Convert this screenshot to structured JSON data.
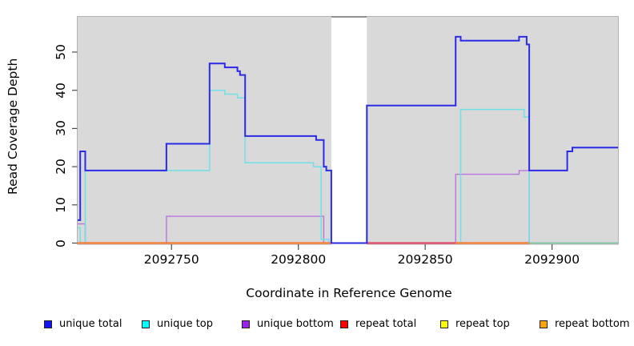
{
  "chart_data": {
    "type": "line",
    "subtype": "step-coverage",
    "title": "",
    "xlabel": "Coordinate in Reference Genome",
    "ylabel": "Read Coverage Depth",
    "xlim": [
      2092713,
      2092926
    ],
    "ylim": [
      0,
      59
    ],
    "x_ticks": [
      2092750,
      2092800,
      2092850,
      2092900
    ],
    "y_ticks": [
      0,
      10,
      20,
      30,
      40,
      50
    ],
    "grid": "off",
    "panel_bg": "#d9d9d9",
    "panel_border": "#b3b3b3",
    "gap_region": {
      "from": 2092813,
      "to": 2092827,
      "fill": "#ffffff",
      "top_mark_color": "#8d8d8d"
    },
    "legend_position": "bottom-row",
    "series": [
      {
        "name": "unique total",
        "swatch_color": "#1414f0",
        "line_color": "#2b2be6",
        "line_width": 2,
        "runs": [
          {
            "steps": [
              [
                2092713,
                6
              ],
              [
                2092714,
                24
              ],
              [
                2092716,
                19
              ],
              [
                2092748,
                26
              ],
              [
                2092765,
                47
              ],
              [
                2092771,
                46
              ],
              [
                2092776,
                45
              ],
              [
                2092777,
                44
              ],
              [
                2092779,
                28
              ],
              [
                2092807,
                27
              ],
              [
                2092810,
                20
              ],
              [
                2092811,
                19
              ],
              [
                2092813,
                0
              ],
              [
                2092827,
                36
              ],
              [
                2092862,
                54
              ],
              [
                2092864,
                53
              ],
              [
                2092887,
                54
              ],
              [
                2092890,
                52
              ],
              [
                2092891,
                19
              ],
              [
                2092906,
                24
              ],
              [
                2092908,
                25
              ]
            ],
            "end": 2092926
          }
        ]
      },
      {
        "name": "unique top",
        "swatch_color": "#00ffff",
        "line_color": "#6fe0e8",
        "line_width": 1.5,
        "runs": [
          {
            "steps": [
              [
                2092713,
                4
              ],
              [
                2092714,
                0
              ],
              [
                2092716,
                19
              ],
              [
                2092765,
                40
              ],
              [
                2092771,
                39
              ],
              [
                2092776,
                38
              ],
              [
                2092779,
                21
              ],
              [
                2092806,
                20
              ],
              [
                2092809,
                1
              ],
              [
                2092812,
                0
              ]
            ],
            "end": 2092813
          },
          {
            "steps": [
              [
                2092864,
                0
              ],
              [
                2092864,
                35
              ],
              [
                2092889,
                33
              ],
              [
                2092891,
                0
              ]
            ],
            "end": 2092891
          }
        ]
      },
      {
        "name": "unique bottom",
        "swatch_color": "#a020f0",
        "line_color": "#b775dc",
        "line_width": 1.4,
        "runs": [
          {
            "steps": [
              [
                2092713,
                5
              ],
              [
                2092716,
                0
              ],
              [
                2092748,
                7
              ],
              [
                2092810,
                0
              ],
              [
                2092862,
                18
              ],
              [
                2092887,
                19
              ],
              [
                2092891,
                0
              ]
            ],
            "end": 2092926
          }
        ]
      },
      {
        "name": "repeat total",
        "swatch_color": "#ff0000",
        "line_color": "#e25570",
        "line_width": 2.4,
        "runs": [
          {
            "steps": [
              [
                2092713,
                0
              ]
            ],
            "end": 2092813
          },
          {
            "steps": [
              [
                2092827,
                0
              ]
            ],
            "end": 2092891
          }
        ]
      },
      {
        "name": "repeat top",
        "swatch_color": "#ffff00",
        "line_color": "#ffe800",
        "line_width": 1.2,
        "runs": [
          {
            "steps": [
              [
                2092713,
                0
              ]
            ],
            "end": 2092813
          },
          {
            "steps": [
              [
                2092862,
                0
              ]
            ],
            "end": 2092891
          }
        ]
      },
      {
        "name": "repeat bottom",
        "swatch_color": "#ffa500",
        "line_color": "#ff9d1e",
        "line_width": 1.5,
        "runs": [
          {
            "steps": [
              [
                2092713,
                0
              ]
            ],
            "end": 2092813
          },
          {
            "steps": [
              [
                2092862,
                0
              ]
            ],
            "end": 2092891
          }
        ]
      }
    ],
    "baseline_overlays": [
      {
        "color": "#7bcf9b",
        "width": 1.4,
        "from": 2092891,
        "to": 2092926,
        "value": 0
      }
    ],
    "legend": [
      {
        "label": "unique total",
        "color": "#1414f0"
      },
      {
        "label": "unique top",
        "color": "#00ffff"
      },
      {
        "label": "unique bottom",
        "color": "#a020f0"
      },
      {
        "label": "repeat total",
        "color": "#ff0000"
      },
      {
        "label": "repeat top",
        "color": "#ffff00"
      },
      {
        "label": "repeat bottom",
        "color": "#ffa500"
      }
    ]
  }
}
